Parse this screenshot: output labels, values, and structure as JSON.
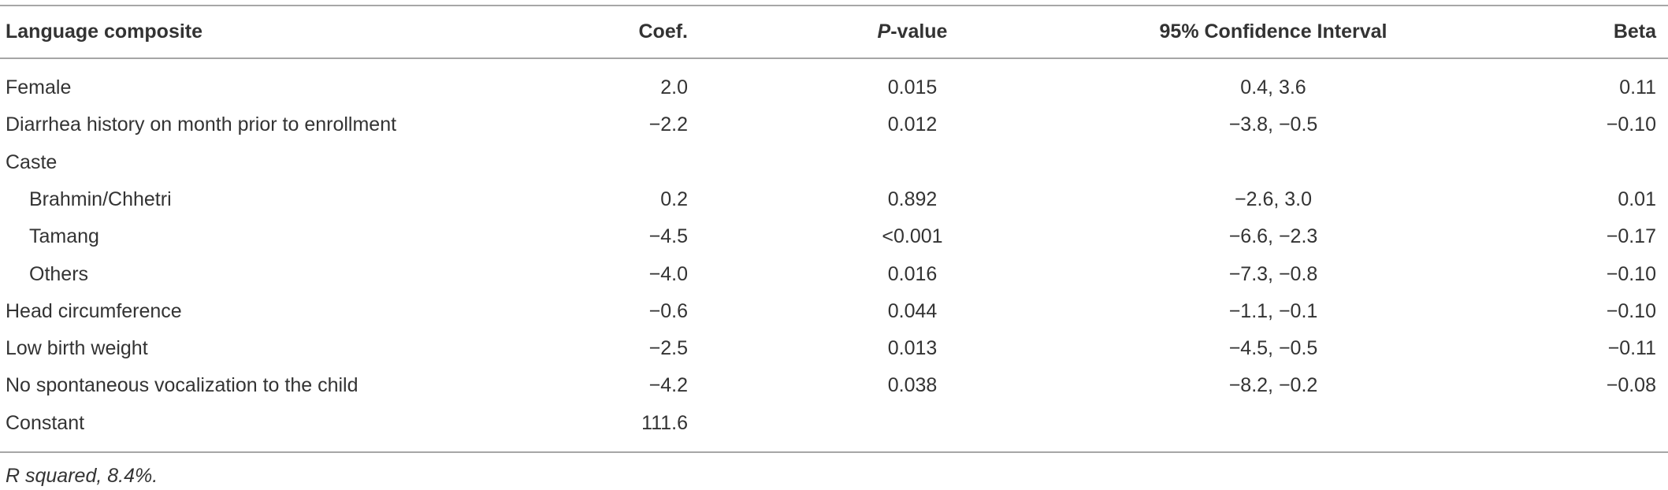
{
  "table": {
    "header": [
      "Language composite",
      "Coef.",
      {
        "italic": "P",
        "rest": "-value"
      },
      "95% Confidence Interval",
      "Beta"
    ],
    "rows": [
      [
        "Female",
        "2.0",
        "0.015",
        "0.4, 3.6",
        "0.11"
      ],
      [
        "Diarrhea history on month prior to enrollment",
        "−2.2",
        "0.012",
        "−3.8, −0.5",
        "−0.10"
      ],
      {
        "group": "Caste",
        "rows": [
          [
            "Brahmin/Chhetri",
            "0.2",
            "0.892",
            "−2.6, 3.0",
            "0.01"
          ],
          [
            "Tamang",
            "−4.5",
            "<0.001",
            "−6.6, −2.3",
            "−0.17"
          ],
          [
            "Others",
            "−4.0",
            "0.016",
            "−7.3, −0.8",
            "−0.10"
          ]
        ]
      },
      [
        "Head circumference",
        "−0.6",
        "0.044",
        "−1.1, −0.1",
        "−0.10"
      ],
      [
        "Low birth weight",
        "−2.5",
        "0.013",
        "−4.5, −0.5",
        "−0.11"
      ],
      [
        "No spontaneous vocalization to the child",
        "−4.2",
        "0.038",
        "−8.2, −0.2",
        "−0.08"
      ],
      [
        "Constant",
        "111.6"
      ]
    ],
    "footnote": "R squared, 8.4%."
  }
}
